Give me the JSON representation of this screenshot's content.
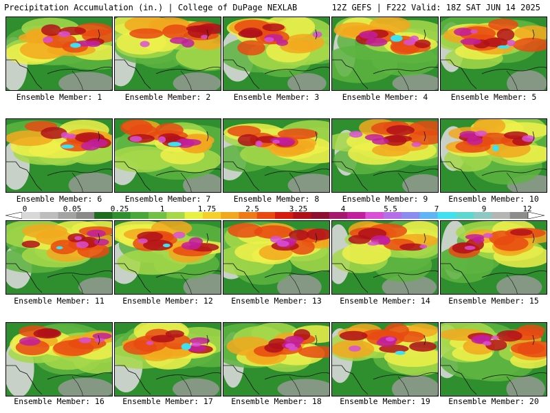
{
  "header": {
    "left": "Precipitation Accumulation (in.) | College of DuPage NEXLAB",
    "right": "12Z GEFS | F222 Valid: 18Z SAT JUN 14 2025"
  },
  "members": [
    "Ensemble Member: 1",
    "Ensemble Member: 2",
    "Ensemble Member: 3",
    "Ensemble Member: 4",
    "Ensemble Member: 5",
    "Ensemble Member: 6",
    "Ensemble Member: 7",
    "Ensemble Member: 8",
    "Ensemble Member: 9",
    "Ensemble Member: 10",
    "Ensemble Member: 11",
    "Ensemble Member: 12",
    "Ensemble Member: 13",
    "Ensemble Member: 14",
    "Ensemble Member: 15",
    "Ensemble Member: 16",
    "Ensemble Member: 17",
    "Ensemble Member: 18",
    "Ensemble Member: 19",
    "Ensemble Member: 20"
  ],
  "scale": {
    "ticks": [
      "0",
      "0.05",
      "0.25",
      "1",
      "1.75",
      "2.5",
      "3.25",
      "4",
      "5.5",
      "7",
      "9",
      "12"
    ],
    "colors": [
      "#d8d8d8",
      "#bdbdbd",
      "#a3a3a3",
      "#8a8a8a",
      "#1f6b1f",
      "#2f8f2f",
      "#4aa83a",
      "#73c046",
      "#a6d84a",
      "#e8f040",
      "#f5d02a",
      "#f2a81e",
      "#ee7a17",
      "#e84a12",
      "#d61c10",
      "#b0101a",
      "#8e1030",
      "#a51a6e",
      "#c21f9e",
      "#d94fd6",
      "#b46ee8",
      "#8a8cf0",
      "#5fb4f3",
      "#3fe0ef",
      "#5dd7d0",
      "#8ec8c4",
      "#b5b5b5",
      "#8c8c8c"
    ]
  },
  "palette": {
    "gray_light": "#d8d8d8",
    "gray": "#9a9a9a",
    "green_dark": "#2f8f2f",
    "green": "#5db43f",
    "yellow_green": "#a6d84a",
    "yellow": "#eef04a",
    "orange": "#f2a81e",
    "red": "#e84a12",
    "dark_red": "#b0101a",
    "magenta": "#c21f9e",
    "violet": "#d94fd6",
    "cyan": "#3fe0ef"
  }
}
